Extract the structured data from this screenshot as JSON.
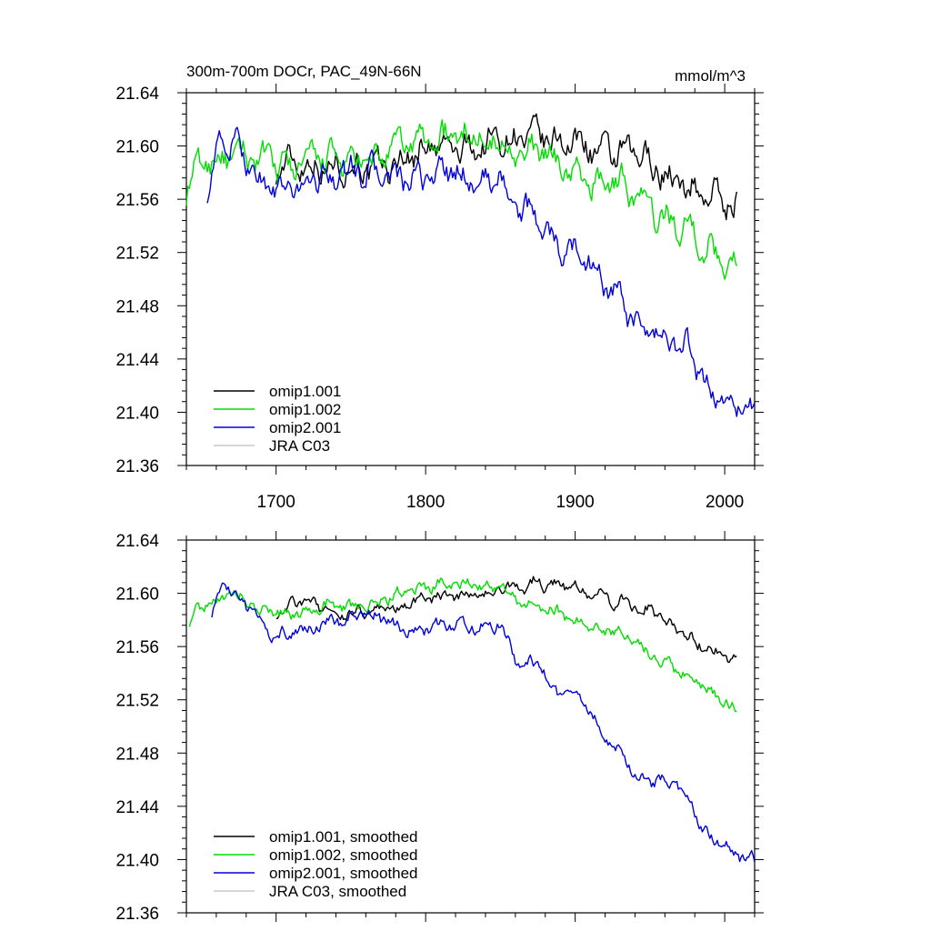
{
  "chart_data": [
    {
      "type": "line",
      "title": "300m-700m DOCr, PAC_49N-66N",
      "units": "mmol/m^3",
      "xlim": [
        1640,
        2020
      ],
      "ylim": [
        21.36,
        21.64
      ],
      "yticks": [
        "21.36",
        "21.40",
        "21.44",
        "21.48",
        "21.52",
        "21.56",
        "21.60",
        "21.64"
      ],
      "xticks": [
        "1700",
        "1800",
        "1900",
        "2000"
      ],
      "series": [
        {
          "name": "omip1.001",
          "color": "#000000",
          "start": 1700,
          "end": 2008,
          "anchors": [
            [
              1700,
              21.58
            ],
            [
              1720,
              21.59
            ],
            [
              1740,
              21.585
            ],
            [
              1760,
              21.58
            ],
            [
              1780,
              21.59
            ],
            [
              1800,
              21.595
            ],
            [
              1820,
              21.6
            ],
            [
              1840,
              21.6
            ],
            [
              1860,
              21.605
            ],
            [
              1875,
              21.61
            ],
            [
              1890,
              21.6
            ],
            [
              1910,
              21.6
            ],
            [
              1930,
              21.595
            ],
            [
              1950,
              21.585
            ],
            [
              1970,
              21.575
            ],
            [
              1990,
              21.56
            ],
            [
              2008,
              21.555
            ]
          ],
          "noise": 0.009
        },
        {
          "name": "omip1.002",
          "color": "#00dd00",
          "start": 1640,
          "end": 2008,
          "anchors": [
            [
              1640,
              21.565
            ],
            [
              1650,
              21.585
            ],
            [
              1660,
              21.595
            ],
            [
              1680,
              21.59
            ],
            [
              1700,
              21.585
            ],
            [
              1720,
              21.59
            ],
            [
              1740,
              21.585
            ],
            [
              1760,
              21.59
            ],
            [
              1780,
              21.595
            ],
            [
              1800,
              21.605
            ],
            [
              1815,
              21.61
            ],
            [
              1830,
              21.605
            ],
            [
              1850,
              21.605
            ],
            [
              1870,
              21.595
            ],
            [
              1890,
              21.585
            ],
            [
              1910,
              21.575
            ],
            [
              1930,
              21.57
            ],
            [
              1950,
              21.555
            ],
            [
              1970,
              21.54
            ],
            [
              1990,
              21.52
            ],
            [
              2008,
              21.515
            ]
          ],
          "noise": 0.009
        },
        {
          "name": "omip2.001",
          "color": "#0000dd",
          "start": 1654,
          "end": 2020,
          "anchors": [
            [
              1654,
              21.57
            ],
            [
              1662,
              21.6
            ],
            [
              1675,
              21.595
            ],
            [
              1690,
              21.575
            ],
            [
              1710,
              21.565
            ],
            [
              1730,
              21.575
            ],
            [
              1750,
              21.585
            ],
            [
              1770,
              21.575
            ],
            [
              1790,
              21.575
            ],
            [
              1810,
              21.58
            ],
            [
              1825,
              21.575
            ],
            [
              1840,
              21.575
            ],
            [
              1850,
              21.58
            ],
            [
              1860,
              21.55
            ],
            [
              1875,
              21.545
            ],
            [
              1890,
              21.525
            ],
            [
              1905,
              21.52
            ],
            [
              1915,
              21.5
            ],
            [
              1930,
              21.485
            ],
            [
              1945,
              21.46
            ],
            [
              1965,
              21.45
            ],
            [
              1975,
              21.45
            ],
            [
              1985,
              21.425
            ],
            [
              1995,
              21.415
            ],
            [
              2010,
              21.4
            ],
            [
              2020,
              21.4
            ]
          ],
          "noise": 0.008
        },
        {
          "name": "JRA C03",
          "color": "#c8c8c8",
          "start": null,
          "end": null,
          "anchors": [],
          "noise": 0
        }
      ]
    },
    {
      "type": "line",
      "title": "",
      "units": "",
      "xlim": [
        1640,
        2020
      ],
      "ylim": [
        21.36,
        21.64
      ],
      "yticks": [
        "21.36",
        "21.40",
        "21.44",
        "21.48",
        "21.52",
        "21.56",
        "21.60",
        "21.64"
      ],
      "xticks": [],
      "series": [
        {
          "name": "omip1.001, smoothed",
          "color": "#000000",
          "start": 1700,
          "end": 2008,
          "anchors": [
            [
              1700,
              21.585
            ],
            [
              1720,
              21.595
            ],
            [
              1740,
              21.585
            ],
            [
              1760,
              21.585
            ],
            [
              1780,
              21.59
            ],
            [
              1800,
              21.595
            ],
            [
              1820,
              21.6
            ],
            [
              1840,
              21.6
            ],
            [
              1860,
              21.605
            ],
            [
              1875,
              21.61
            ],
            [
              1890,
              21.605
            ],
            [
              1910,
              21.6
            ],
            [
              1930,
              21.595
            ],
            [
              1950,
              21.585
            ],
            [
              1970,
              21.575
            ],
            [
              1990,
              21.555
            ],
            [
              2008,
              21.55
            ]
          ],
          "noise": 0.004
        },
        {
          "name": "omip1.002, smoothed",
          "color": "#00dd00",
          "start": 1642,
          "end": 2008,
          "anchors": [
            [
              1642,
              21.578
            ],
            [
              1655,
              21.595
            ],
            [
              1670,
              21.6
            ],
            [
              1690,
              21.585
            ],
            [
              1710,
              21.585
            ],
            [
              1730,
              21.59
            ],
            [
              1750,
              21.59
            ],
            [
              1770,
              21.595
            ],
            [
              1790,
              21.6
            ],
            [
              1810,
              21.61
            ],
            [
              1830,
              21.605
            ],
            [
              1850,
              21.605
            ],
            [
              1870,
              21.59
            ],
            [
              1890,
              21.585
            ],
            [
              1910,
              21.575
            ],
            [
              1930,
              21.57
            ],
            [
              1950,
              21.555
            ],
            [
              1970,
              21.54
            ],
            [
              1990,
              21.525
            ],
            [
              2008,
              21.515
            ]
          ],
          "noise": 0.004
        },
        {
          "name": "omip2.001, smoothed",
          "color": "#0000dd",
          "start": 1657,
          "end": 2020,
          "anchors": [
            [
              1657,
              21.585
            ],
            [
              1665,
              21.605
            ],
            [
              1680,
              21.59
            ],
            [
              1700,
              21.57
            ],
            [
              1720,
              21.57
            ],
            [
              1740,
              21.58
            ],
            [
              1760,
              21.585
            ],
            [
              1780,
              21.575
            ],
            [
              1800,
              21.575
            ],
            [
              1820,
              21.575
            ],
            [
              1840,
              21.575
            ],
            [
              1850,
              21.578
            ],
            [
              1860,
              21.55
            ],
            [
              1875,
              21.545
            ],
            [
              1890,
              21.525
            ],
            [
              1905,
              21.52
            ],
            [
              1915,
              21.5
            ],
            [
              1930,
              21.48
            ],
            [
              1945,
              21.46
            ],
            [
              1965,
              21.455
            ],
            [
              1975,
              21.45
            ],
            [
              1985,
              21.425
            ],
            [
              1995,
              21.415
            ],
            [
              2010,
              21.4
            ],
            [
              2020,
              21.398
            ]
          ],
          "noise": 0.004
        },
        {
          "name": "JRA C03, smoothed",
          "color": "#c8c8c8",
          "start": null,
          "end": null,
          "anchors": [],
          "noise": 0
        }
      ]
    }
  ]
}
